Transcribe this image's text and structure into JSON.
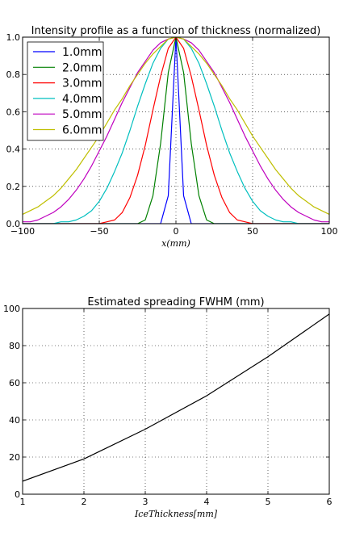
{
  "chart_data": [
    {
      "type": "line",
      "title": "Intensity profile as a function of thickness (normalized)",
      "xlabel": "x(mm)",
      "ylabel": "",
      "xlim": [
        -100,
        100
      ],
      "ylim": [
        0.0,
        1.0
      ],
      "xticks": [
        -100,
        -50,
        0,
        50,
        100
      ],
      "xtick_labels": [
        "−100",
        "−50",
        "0",
        "50",
        "100"
      ],
      "yticks": [
        0.0,
        0.2,
        0.4,
        0.6,
        0.8,
        1.0
      ],
      "ytick_labels": [
        "0.0",
        "0.2",
        "0.4",
        "0.6",
        "0.8",
        "1.0"
      ],
      "grid": true,
      "legend_position": "top-left",
      "x": [
        -100,
        -95,
        -90,
        -85,
        -80,
        -75,
        -70,
        -65,
        -60,
        -55,
        -50,
        -45,
        -40,
        -35,
        -30,
        -25,
        -20,
        -15,
        -10,
        -5,
        0,
        5,
        10,
        15,
        20,
        25,
        30,
        35,
        40,
        45,
        50,
        55,
        60,
        65,
        70,
        75,
        80,
        85,
        90,
        95,
        100
      ],
      "series": [
        {
          "name": "1.0mm",
          "color": "#0000ff",
          "values": [
            0,
            0,
            0,
            0,
            0,
            0,
            0,
            0,
            0,
            0,
            0,
            0,
            0,
            0,
            0,
            0,
            0,
            0,
            0,
            0.15,
            1.0,
            0.15,
            0,
            0,
            0,
            0,
            0,
            0,
            0,
            0,
            0,
            0,
            0,
            0,
            0,
            0,
            0,
            0,
            0,
            0,
            0
          ]
        },
        {
          "name": "2.0mm",
          "color": "#008000",
          "values": [
            0,
            0,
            0,
            0,
            0,
            0,
            0,
            0,
            0,
            0,
            0,
            0,
            0,
            0,
            0,
            0,
            0.02,
            0.15,
            0.43,
            0.81,
            1.0,
            0.81,
            0.43,
            0.15,
            0.02,
            0,
            0,
            0,
            0,
            0,
            0,
            0,
            0,
            0,
            0,
            0,
            0,
            0,
            0,
            0,
            0
          ]
        },
        {
          "name": "3.0mm",
          "color": "#ff0000",
          "values": [
            0,
            0,
            0,
            0,
            0,
            0,
            0,
            0,
            0,
            0,
            0,
            0.01,
            0.02,
            0.06,
            0.14,
            0.26,
            0.42,
            0.61,
            0.79,
            0.94,
            1.0,
            0.94,
            0.79,
            0.61,
            0.42,
            0.26,
            0.14,
            0.06,
            0.02,
            0.01,
            0,
            0,
            0,
            0,
            0,
            0,
            0,
            0,
            0,
            0,
            0
          ]
        },
        {
          "name": "4.0mm",
          "color": "#00bfbf",
          "values": [
            0,
            0,
            0,
            0,
            0,
            0.01,
            0.01,
            0.02,
            0.04,
            0.07,
            0.12,
            0.19,
            0.28,
            0.38,
            0.5,
            0.63,
            0.75,
            0.86,
            0.94,
            0.99,
            1.0,
            0.99,
            0.94,
            0.86,
            0.75,
            0.63,
            0.5,
            0.38,
            0.28,
            0.19,
            0.12,
            0.07,
            0.04,
            0.02,
            0.01,
            0.01,
            0,
            0,
            0,
            0,
            0
          ]
        },
        {
          "name": "5.0mm",
          "color": "#bf00bf",
          "values": [
            0.01,
            0.01,
            0.02,
            0.04,
            0.06,
            0.09,
            0.13,
            0.18,
            0.24,
            0.31,
            0.39,
            0.47,
            0.56,
            0.65,
            0.73,
            0.81,
            0.87,
            0.93,
            0.97,
            0.99,
            1.0,
            0.99,
            0.97,
            0.93,
            0.87,
            0.81,
            0.73,
            0.65,
            0.56,
            0.47,
            0.39,
            0.31,
            0.24,
            0.18,
            0.13,
            0.09,
            0.06,
            0.04,
            0.02,
            0.01,
            0.01
          ]
        },
        {
          "name": "6.0mm",
          "color": "#bfbf00",
          "values": [
            0.05,
            0.07,
            0.09,
            0.12,
            0.15,
            0.19,
            0.24,
            0.29,
            0.35,
            0.41,
            0.47,
            0.54,
            0.61,
            0.67,
            0.74,
            0.8,
            0.86,
            0.91,
            0.95,
            0.99,
            1.0,
            0.99,
            0.95,
            0.91,
            0.86,
            0.8,
            0.74,
            0.67,
            0.61,
            0.54,
            0.47,
            0.41,
            0.35,
            0.29,
            0.24,
            0.19,
            0.15,
            0.12,
            0.09,
            0.07,
            0.05
          ]
        }
      ]
    },
    {
      "type": "line",
      "title": "Estimated spreading FWHM (mm)",
      "xlabel": "IceThickness[mm]",
      "ylabel": "",
      "xlim": [
        1,
        6
      ],
      "ylim": [
        0,
        100
      ],
      "xticks": [
        1,
        2,
        3,
        4,
        5,
        6
      ],
      "xtick_labels": [
        "1",
        "2",
        "3",
        "4",
        "5",
        "6"
      ],
      "yticks": [
        0,
        20,
        40,
        60,
        80,
        100
      ],
      "ytick_labels": [
        "0",
        "20",
        "40",
        "60",
        "80",
        "100"
      ],
      "grid": true,
      "x": [
        1,
        2,
        3,
        4,
        5,
        6
      ],
      "series": [
        {
          "color": "#000000",
          "values": [
            7,
            19,
            35,
            53,
            74,
            97
          ]
        }
      ]
    }
  ]
}
